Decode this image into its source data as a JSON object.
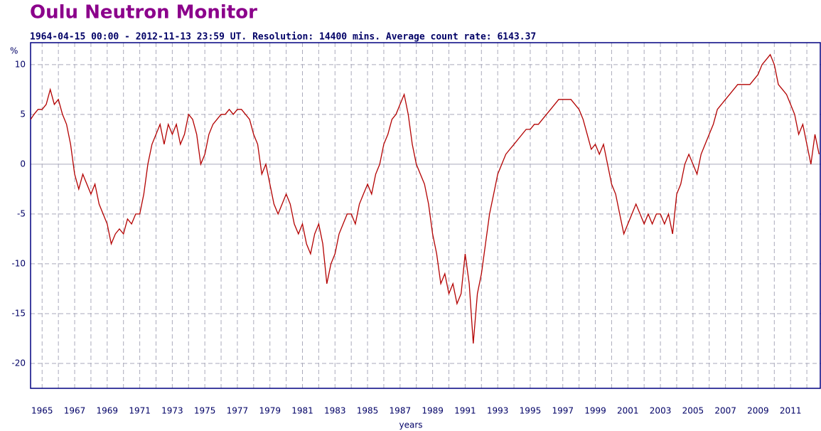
{
  "chart_data": {
    "type": "line",
    "title": "Oulu Neutron Monitor",
    "subtitle": "1964-04-15 00:00 - 2012-11-13 23:59 UT. Resolution: 14400 mins. Average count rate: 6143.37",
    "y_label": "%",
    "x_label": "years",
    "xlim": [
      1964.29,
      2012.87
    ],
    "ylim": [
      -22.5,
      12.2
    ],
    "xticks": [
      1965,
      1967,
      1969,
      1971,
      1973,
      1975,
      1977,
      1979,
      1981,
      1983,
      1985,
      1987,
      1989,
      1991,
      1993,
      1995,
      1997,
      1999,
      2001,
      2003,
      2005,
      2007,
      2009,
      2011
    ],
    "xminorticks": [
      1966,
      1968,
      1970,
      1972,
      1974,
      1976,
      1978,
      1980,
      1982,
      1984,
      1986,
      1988,
      1990,
      1992,
      1994,
      1996,
      1998,
      2000,
      2002,
      2004,
      2006,
      2008,
      2010,
      2012
    ],
    "yticks": [
      -20,
      -15,
      -10,
      -5,
      0,
      5,
      10
    ],
    "grid": true,
    "x": [
      1964.3,
      1964.5,
      1964.75,
      1965,
      1965.25,
      1965.5,
      1965.75,
      1966,
      1966.25,
      1966.5,
      1966.75,
      1967,
      1967.25,
      1967.5,
      1967.75,
      1968,
      1968.25,
      1968.5,
      1968.75,
      1969,
      1969.25,
      1969.5,
      1969.75,
      1970,
      1970.25,
      1970.5,
      1970.75,
      1971,
      1971.25,
      1971.5,
      1971.75,
      1972,
      1972.25,
      1972.5,
      1972.75,
      1973,
      1973.25,
      1973.5,
      1973.75,
      1974,
      1974.25,
      1974.5,
      1974.75,
      1975,
      1975.25,
      1975.5,
      1975.75,
      1976,
      1976.25,
      1976.5,
      1976.75,
      1977,
      1977.25,
      1977.5,
      1977.75,
      1978,
      1978.25,
      1978.5,
      1978.75,
      1979,
      1979.25,
      1979.5,
      1979.75,
      1980,
      1980.25,
      1980.5,
      1980.75,
      1981,
      1981.25,
      1981.5,
      1981.75,
      1982,
      1982.25,
      1982.5,
      1982.75,
      1983,
      1983.25,
      1983.5,
      1983.75,
      1984,
      1984.25,
      1984.5,
      1984.75,
      1985,
      1985.25,
      1985.5,
      1985.75,
      1986,
      1986.25,
      1986.5,
      1986.75,
      1987,
      1987.25,
      1987.5,
      1987.75,
      1988,
      1988.25,
      1988.5,
      1988.75,
      1989,
      1989.25,
      1989.5,
      1989.75,
      1990,
      1990.25,
      1990.5,
      1990.75,
      1991,
      1991.25,
      1991.5,
      1991.75,
      1992,
      1992.25,
      1992.5,
      1992.75,
      1993,
      1993.25,
      1993.5,
      1993.75,
      1994,
      1994.25,
      1994.5,
      1994.75,
      1995,
      1995.25,
      1995.5,
      1995.75,
      1996,
      1996.25,
      1996.5,
      1996.75,
      1997,
      1997.25,
      1997.5,
      1997.75,
      1998,
      1998.25,
      1998.5,
      1998.75,
      1999,
      1999.25,
      1999.5,
      1999.75,
      2000,
      2000.25,
      2000.5,
      2000.75,
      2001,
      2001.25,
      2001.5,
      2001.75,
      2002,
      2002.25,
      2002.5,
      2002.75,
      2003,
      2003.25,
      2003.5,
      2003.75,
      2004,
      2004.25,
      2004.5,
      2004.75,
      2005,
      2005.25,
      2005.5,
      2005.75,
      2006,
      2006.25,
      2006.5,
      2006.75,
      2007,
      2007.25,
      2007.5,
      2007.75,
      2008,
      2008.25,
      2008.5,
      2008.75,
      2009,
      2009.25,
      2009.5,
      2009.75,
      2010,
      2010.25,
      2010.5,
      2010.75,
      2011,
      2011.25,
      2011.5,
      2011.75,
      2012,
      2012.25,
      2012.5,
      2012.75
    ],
    "series": [
      {
        "color": "#b30000",
        "values": [
          4.5,
          5,
          5.5,
          5.5,
          6,
          7.5,
          6,
          6.5,
          5,
          4,
          2,
          -1,
          -2.5,
          -1,
          -2,
          -3,
          -2,
          -4,
          -5,
          -6,
          -8,
          -7,
          -6.5,
          -7,
          -5.5,
          -6,
          -5,
          -5,
          -3,
          0,
          2,
          3,
          4,
          2,
          4,
          3,
          4,
          2,
          3,
          5,
          4.5,
          3,
          0,
          1,
          3,
          4,
          4.5,
          5,
          5,
          5.5,
          5,
          5.5,
          5.5,
          5,
          4.5,
          3,
          2,
          -1,
          0,
          -2,
          -4,
          -5,
          -4,
          -3,
          -4,
          -6,
          -7,
          -6,
          -8,
          -9,
          -7,
          -6,
          -8,
          -12,
          -10,
          -9,
          -7,
          -6,
          -5,
          -5,
          -6,
          -4,
          -3,
          -2,
          -3,
          -1,
          0,
          2,
          3,
          4.5,
          5,
          6,
          7,
          5,
          2,
          0,
          -1,
          -2,
          -4,
          -7,
          -9,
          -12,
          -11,
          -13,
          -12,
          -14,
          -13,
          -9,
          -12,
          -18,
          -13,
          -11,
          -8,
          -5,
          -3,
          -1,
          0,
          1,
          1.5,
          2,
          2.5,
          3,
          3.5,
          3.5,
          4,
          4,
          4.5,
          5,
          5.5,
          6,
          6.5,
          6.5,
          6.5,
          6.5,
          6,
          5.5,
          4.5,
          3,
          1.5,
          2,
          1,
          2,
          0,
          -2,
          -3,
          -5,
          -7,
          -6,
          -5,
          -4,
          -5,
          -6,
          -5,
          -6,
          -5,
          -5,
          -6,
          -5,
          -7,
          -3,
          -2,
          0,
          1,
          0,
          -1,
          1,
          2,
          3,
          4,
          5.5,
          6,
          6.5,
          7,
          7.5,
          8,
          8,
          8,
          8,
          8.5,
          9,
          10,
          10.5,
          11,
          10,
          8,
          7.5,
          7,
          6,
          5,
          3,
          4,
          2,
          0,
          3,
          1
        ]
      }
    ]
  }
}
